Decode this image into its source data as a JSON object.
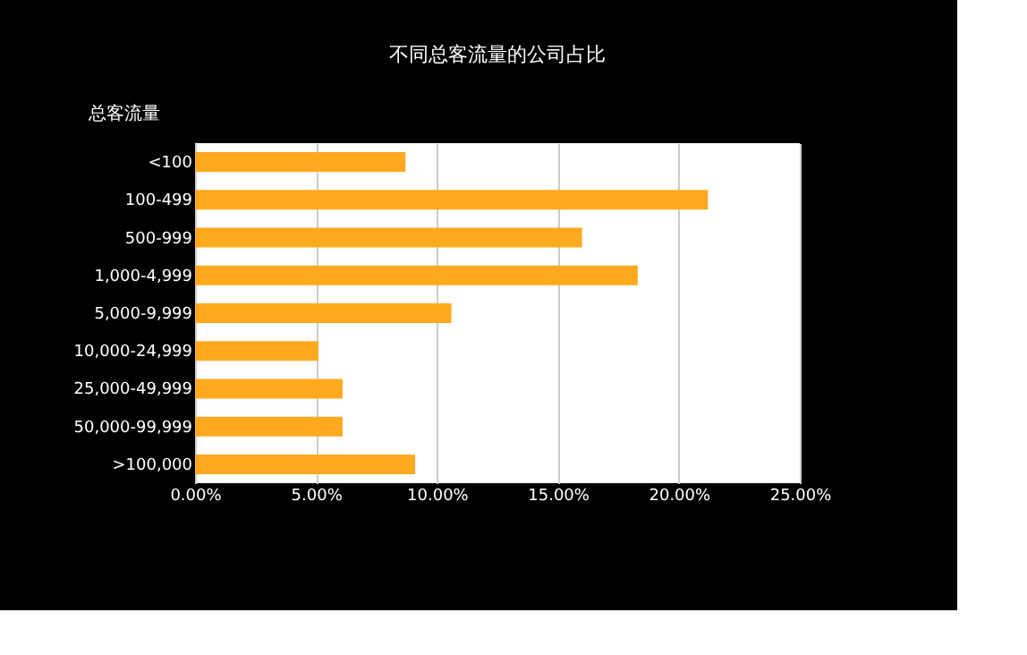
{
  "chart_data": {
    "type": "bar",
    "orientation": "horizontal",
    "title": "不同总客流量的公司占比",
    "ylabel": "总客流量",
    "categories": [
      "<100",
      "100-499",
      "500-999",
      "1,000-4,999",
      "5,000-9,999",
      "10,000-24,999",
      "25,000-49,999",
      "50,000-99,999",
      ">100,000"
    ],
    "values": [
      8.7,
      21.2,
      16.0,
      18.3,
      10.6,
      5.1,
      6.1,
      6.1,
      9.1
    ],
    "color": "#ffa91f",
    "xlim": [
      0,
      25
    ],
    "xticks": [
      {
        "value": 0,
        "label": "0.00%"
      },
      {
        "value": 5,
        "label": "5.00%"
      },
      {
        "value": 10,
        "label": "10.00%"
      },
      {
        "value": 15,
        "label": "15.00%"
      },
      {
        "value": 20,
        "label": "20.00%"
      },
      {
        "value": 25,
        "label": "25.00%"
      }
    ],
    "grid": "x"
  }
}
